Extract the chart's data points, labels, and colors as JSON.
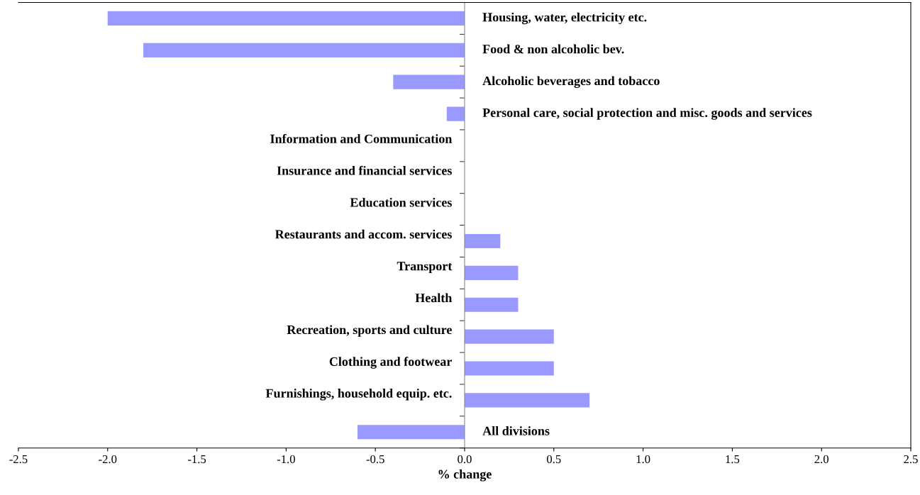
{
  "chart_data": {
    "type": "bar",
    "orientation": "horizontal",
    "xlabel": "% change",
    "categories": [
      "Housing, water, electricity etc.",
      "Food & non alcoholic bev.",
      "Alcoholic beverages and tobacco",
      "Personal care, social protection and misc. goods and services",
      "Information and Communication",
      "Insurance and financial services",
      "Education services",
      "Restaurants and accom. services",
      "Transport",
      "Health",
      "Recreation, sports and culture",
      "Clothing and footwear",
      "Furnishings, household equip. etc.",
      "All divisions"
    ],
    "values": [
      -2.0,
      -1.8,
      -0.4,
      -0.1,
      0,
      0,
      0,
      0.2,
      0.3,
      0.3,
      0.5,
      0.5,
      0.7,
      -0.6
    ],
    "color": "#9999ff",
    "xlim": [
      -2.5,
      2.5
    ],
    "xticks": [
      {
        "value": -2.5,
        "label": "-2.5"
      },
      {
        "value": -2.0,
        "label": "-2.0"
      },
      {
        "value": -1.5,
        "label": "-1.5"
      },
      {
        "value": -1.0,
        "label": "-1.0"
      },
      {
        "value": -0.5,
        "label": "-0.5"
      },
      {
        "value": 0,
        "label": "0.0"
      },
      {
        "value": 0.5,
        "label": "0.5"
      },
      {
        "value": 1.0,
        "label": "1.0"
      },
      {
        "value": 1.5,
        "label": "1.5"
      },
      {
        "value": 2.0,
        "label": "2.0"
      },
      {
        "value": 2.5,
        "label": "2.5"
      }
    ],
    "grid": false,
    "legend": false
  }
}
